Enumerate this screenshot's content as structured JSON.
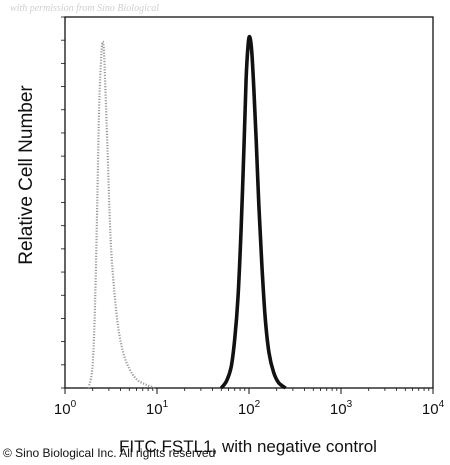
{
  "watermark": "with permission from Sino Biological",
  "copyright": "© Sino Biological Inc. All rights reserved",
  "chart_data": {
    "type": "line",
    "xlabel": "FITC FSTL1, with negative control",
    "ylabel": "Relative Cell Number",
    "x_scale": "log",
    "xlim": [
      1,
      10000
    ],
    "x_ticks": [
      {
        "base": "10",
        "exp": "0"
      },
      {
        "base": "10",
        "exp": "1"
      },
      {
        "base": "10",
        "exp": "2"
      },
      {
        "base": "10",
        "exp": "3"
      },
      {
        "base": "10",
        "exp": "4"
      }
    ],
    "ylim": [
      0,
      1
    ],
    "grid": false,
    "series": [
      {
        "style": "dotted-gray",
        "color": "#9a9a9a",
        "x": [
          1.8,
          1.95,
          2.05,
          2.15,
          2.25,
          2.35,
          2.45,
          2.55,
          2.65,
          2.75,
          2.9,
          3.05,
          3.2,
          3.45,
          3.8,
          4.3,
          5.0,
          6.0,
          7.5,
          9.5
        ],
        "y": [
          0.0,
          0.04,
          0.12,
          0.3,
          0.55,
          0.8,
          0.92,
          0.985,
          0.96,
          0.85,
          0.68,
          0.5,
          0.38,
          0.27,
          0.17,
          0.1,
          0.055,
          0.025,
          0.01,
          0.0
        ]
      },
      {
        "style": "solid-black",
        "color": "#111111",
        "x": [
          50,
          57,
          64,
          70,
          76,
          82,
          88,
          93,
          98,
          102,
          107,
          113,
          120,
          128,
          138,
          150,
          165,
          185,
          210,
          250
        ],
        "y": [
          0.0,
          0.02,
          0.06,
          0.14,
          0.26,
          0.45,
          0.68,
          0.88,
          0.98,
          1.0,
          0.96,
          0.85,
          0.7,
          0.52,
          0.35,
          0.2,
          0.1,
          0.045,
          0.015,
          0.0
        ]
      }
    ]
  }
}
